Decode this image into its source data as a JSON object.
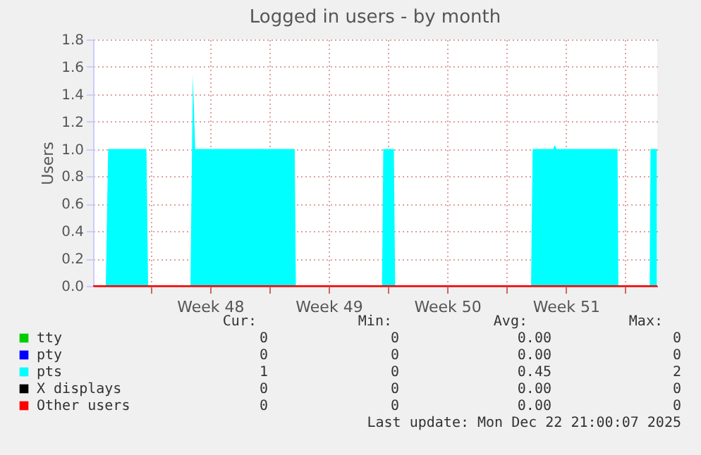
{
  "chart_data": {
    "type": "area",
    "title": "Logged in users - by month",
    "ylabel": "Users",
    "xlim": [
      "2025-11-20T14:21",
      "2025-12-23T21:32"
    ],
    "ylim": [
      0,
      1.8
    ],
    "xticks": [
      {
        "value": "2025-11-24",
        "label": null
      },
      {
        "value": "2025-11-27T12:00",
        "label": "Week 48"
      },
      {
        "value": "2025-12-01",
        "label": null
      },
      {
        "value": "2025-12-04T12:00",
        "label": "Week 49"
      },
      {
        "value": "2025-12-08",
        "label": null
      },
      {
        "value": "2025-12-11T12:00",
        "label": "Week 50"
      },
      {
        "value": "2025-12-15",
        "label": null
      },
      {
        "value": "2025-12-18T12:00",
        "label": "Week 51"
      },
      {
        "value": "2025-12-22",
        "label": null
      }
    ],
    "yticks": [
      {
        "value": 0,
        "label": "0.0"
      },
      {
        "value": 0.2,
        "label": "0.2"
      },
      {
        "value": 0.4,
        "label": "0.4"
      },
      {
        "value": 0.6,
        "label": "0.6"
      },
      {
        "value": 0.8,
        "label": "0.8"
      },
      {
        "value": 1.0,
        "label": "1.0"
      },
      {
        "value": 1.2,
        "label": "1.2"
      },
      {
        "value": 1.4,
        "label": "1.4"
      },
      {
        "value": 1.6,
        "label": "1.6"
      },
      {
        "value": 1.8,
        "label": "1.8"
      }
    ],
    "grid": true,
    "legend": "bottom",
    "series": [
      {
        "name": "tty",
        "type": "line",
        "color": "#00cc00",
        "values": [
          null,
          null
        ]
      },
      {
        "name": "pty",
        "type": "line",
        "color": "#0000ff",
        "values": [
          null,
          null
        ]
      },
      {
        "name": "pts",
        "type": "area",
        "color": "#00ffff",
        "x": [
          "2025-11-20T14:21",
          "2025-11-21T08:20",
          "2025-11-21T11:41",
          "2025-11-23T17:57",
          "2025-11-23T20:18",
          "2025-11-26T08:17",
          "2025-11-26T11:38",
          "2025-11-26T15:00",
          "2025-12-02T11:57",
          "2025-12-02T13:38",
          "2025-12-07T15:36",
          "2025-12-07T17:27",
          "2025-12-08T08:24",
          "2025-12-08T10:15",
          "2025-12-16T10:47",
          "2025-12-16T12:58",
          "2025-12-17T18:01",
          "2025-12-17T20:23",
          "2025-12-17T22:44",
          "2025-12-21T13:15",
          "2025-12-21T14:25",
          "2025-12-23T10:47",
          "2025-12-23T11:57",
          "2025-12-23T20:51"
        ],
        "values": [
          0,
          0,
          1,
          1,
          0,
          0,
          1.54,
          1,
          1,
          0,
          0,
          1,
          1,
          0,
          0,
          1,
          1,
          1.03,
          1,
          1,
          0,
          0,
          1,
          1
        ]
      },
      {
        "name": "X displays",
        "type": "line",
        "color": "#000000",
        "values": [
          null,
          null
        ]
      },
      {
        "name": "Other users",
        "type": "line",
        "color": "#ff0000",
        "x": [
          "2025-11-20T14:21",
          "2025-12-23T21:32"
        ],
        "values": [
          0,
          0
        ]
      }
    ],
    "annotations": [
      "Cur:",
      "Min:",
      "Avg:",
      "Max:",
      "0",
      "0",
      "0.00",
      "0",
      "0",
      "0",
      "0.00",
      "0",
      "1",
      "0",
      "0.45",
      "2",
      "0",
      "0",
      "0.00",
      "0",
      "0",
      "0",
      "0.00",
      "0",
      "Last update: Mon Dec 22 21:00:07 2025"
    ]
  }
}
